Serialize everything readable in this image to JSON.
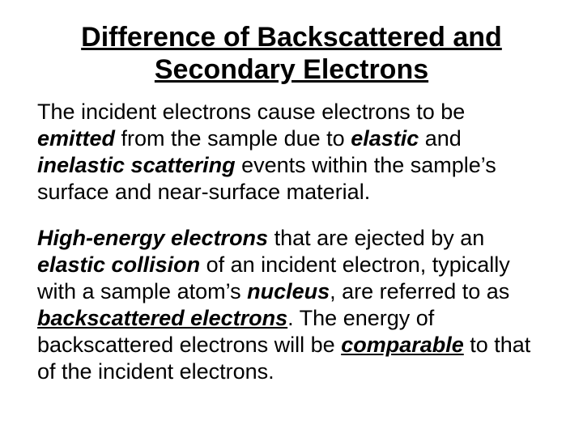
{
  "title_fontsize": 34,
  "body_fontsize": 27,
  "text_color": "#000000",
  "background_color": "#ffffff",
  "font_family": "Arial",
  "title": {
    "line1": "Difference of Backscattered and",
    "line2": "Secondary Electrons"
  },
  "p1": {
    "t1": "The incident electrons cause electrons to be ",
    "kw1": "emitted",
    "t2": " from the sample due to ",
    "kw2": "elastic",
    "t3": " and ",
    "kw3": "inelastic scattering",
    "t4": " events within the sample’s surface and near-surface material."
  },
  "p2": {
    "kw1": "High-energy electrons",
    "t1": " that are ejected by an ",
    "kw2": "elastic collision",
    "t2": " of an incident electron, typically with a sample atom’s ",
    "kw3": "nucleus",
    "t3": ", are referred to as ",
    "kw4": "backscattered electrons",
    "t4": ". The energy of backscattered electrons will be ",
    "kw5": "comparable",
    "t5": " to that of the incident electrons."
  }
}
